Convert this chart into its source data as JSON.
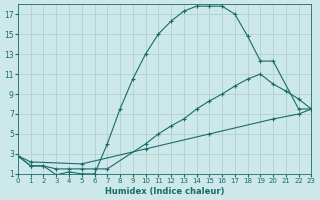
{
  "xlabel": "Humidex (Indice chaleur)",
  "bg_color": "#cce8e8",
  "grid_color": "#aacccc",
  "line_color": "#1a6a6a",
  "xlim": [
    0,
    23
  ],
  "ylim": [
    1,
    18
  ],
  "xtick_labels": [
    "0",
    "1",
    "2",
    "3",
    "4",
    "5",
    "6",
    "7",
    "8",
    "9",
    "10",
    "11",
    "12",
    "13",
    "14",
    "15",
    "16",
    "17",
    "18",
    "19",
    "20",
    "21",
    "22",
    "23"
  ],
  "xticks": [
    0,
    1,
    2,
    3,
    4,
    5,
    6,
    7,
    8,
    9,
    10,
    11,
    12,
    13,
    14,
    15,
    16,
    17,
    18,
    19,
    20,
    21,
    22,
    23
  ],
  "yticks": [
    1,
    3,
    5,
    7,
    9,
    11,
    13,
    15,
    17
  ],
  "series1_x": [
    0,
    1,
    2,
    3,
    4,
    5,
    6,
    7,
    8,
    9,
    10,
    11,
    12,
    13,
    14,
    15,
    16,
    17,
    18,
    19,
    20,
    22,
    23
  ],
  "series1_y": [
    2.8,
    1.8,
    1.8,
    0.9,
    1.2,
    1.0,
    1.0,
    4.0,
    7.5,
    10.5,
    13.0,
    15.0,
    16.3,
    17.3,
    17.8,
    17.8,
    17.8,
    17.0,
    14.8,
    12.3,
    12.3,
    7.5,
    7.5
  ],
  "series2_x": [
    0,
    1,
    2,
    3,
    4,
    5,
    6,
    7,
    10,
    11,
    12,
    13,
    14,
    15,
    16,
    17,
    18,
    19,
    20,
    21,
    22,
    23
  ],
  "series2_y": [
    2.8,
    1.8,
    1.8,
    1.5,
    1.5,
    1.5,
    1.5,
    1.5,
    4.0,
    5.0,
    5.8,
    6.5,
    7.5,
    8.3,
    9.0,
    9.8,
    10.5,
    11.0,
    10.0,
    9.3,
    8.5,
    7.5
  ],
  "series3_x": [
    0,
    1,
    5,
    10,
    15,
    20,
    22,
    23
  ],
  "series3_y": [
    2.8,
    2.2,
    2.0,
    3.5,
    5.0,
    6.5,
    7.0,
    7.5
  ]
}
